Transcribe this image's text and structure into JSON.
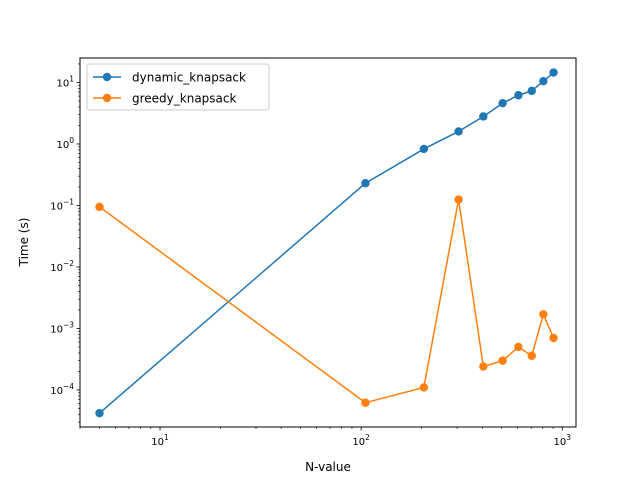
{
  "chart_data": {
    "type": "line",
    "title": "",
    "xlabel": "N-value",
    "ylabel": "Time (s)",
    "xscale": "log",
    "yscale": "log",
    "xlim": [
      4,
      1170
    ],
    "ylim": [
      2.5e-05,
      25
    ],
    "grid": false,
    "legend_position": "upper left",
    "x_ticks": [
      {
        "value": 10,
        "base": "10",
        "exp": "1"
      },
      {
        "value": 100,
        "base": "10",
        "exp": "2"
      },
      {
        "value": 1000,
        "base": "10",
        "exp": "3"
      }
    ],
    "y_ticks": [
      {
        "value": 0.0001,
        "base": "10",
        "exp": "−4"
      },
      {
        "value": 0.001,
        "base": "10",
        "exp": "−3"
      },
      {
        "value": 0.01,
        "base": "10",
        "exp": "−2"
      },
      {
        "value": 0.1,
        "base": "10",
        "exp": "−1"
      },
      {
        "value": 1,
        "base": "10",
        "exp": "0"
      },
      {
        "value": 10,
        "base": "10",
        "exp": "1"
      }
    ],
    "series": [
      {
        "name": "dynamic_knapsack",
        "color": "#1f77b4",
        "x": [
          5,
          105,
          205,
          305,
          405,
          505,
          605,
          705,
          805,
          905
        ],
        "y": [
          4.2e-05,
          0.23,
          0.83,
          1.6,
          2.8,
          4.6,
          6.2,
          7.3,
          10.5,
          14.5
        ]
      },
      {
        "name": "greedy_knapsack",
        "color": "#ff7f0e",
        "x": [
          5,
          105,
          205,
          305,
          405,
          505,
          605,
          705,
          805,
          905
        ],
        "y": [
          0.095,
          6.2e-05,
          0.00011,
          0.125,
          0.00024,
          0.0003,
          0.0005,
          0.00036,
          0.0017,
          0.0007
        ]
      }
    ]
  }
}
